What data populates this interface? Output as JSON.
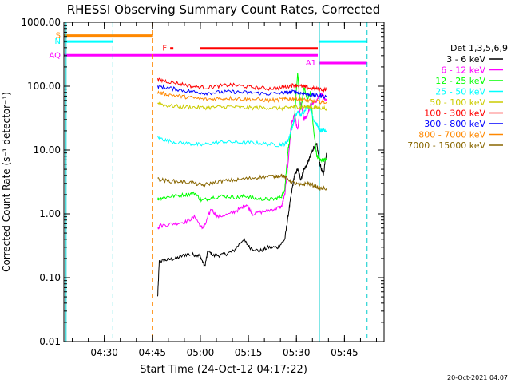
{
  "chart_data": {
    "type": "line",
    "title": "RHESSI Observing Summary Count Rates, Corrected",
    "xlabel": "Start Time (24-Oct-12 04:17:22)",
    "ylabel": "Corrected Count Rate (s⁻¹ detector⁻¹)",
    "footer": "20-Oct-2021 04:07",
    "x_unit": "minutes after 04:17:22",
    "xlim": [
      0,
      100
    ],
    "ylim": [
      0.01,
      1000
    ],
    "y_scale": "log",
    "x_ticks": [
      {
        "label": "04:30",
        "value": 12.63
      },
      {
        "label": "04:45",
        "value": 27.63
      },
      {
        "label": "05:00",
        "value": 42.63
      },
      {
        "label": "05:15",
        "value": 57.63
      },
      {
        "label": "05:30",
        "value": 72.63
      },
      {
        "label": "05:45",
        "value": 87.63
      }
    ],
    "y_ticks": [
      {
        "label": "1000.00",
        "value": 1000
      },
      {
        "label": "100.00",
        "value": 100
      },
      {
        "label": "10.00",
        "value": 10
      },
      {
        "label": "1.00",
        "value": 1
      },
      {
        "label": "0.10",
        "value": 0.1
      },
      {
        "label": "0.01",
        "value": 0.01
      }
    ],
    "legend_title": "Det 1,3,5,6,9",
    "legend_position": "right",
    "grid": false,
    "series": [
      {
        "name": "3 - 6 keV",
        "color": "#000000",
        "points": [
          [
            29.3,
            0.05
          ],
          [
            29.8,
            0.18
          ],
          [
            32,
            0.19
          ],
          [
            35,
            0.2
          ],
          [
            38,
            0.23
          ],
          [
            41,
            0.23
          ],
          [
            42.5,
            0.22
          ],
          [
            44,
            0.15
          ],
          [
            45,
            0.26
          ],
          [
            47,
            0.22
          ],
          [
            50,
            0.23
          ],
          [
            53,
            0.26
          ],
          [
            56,
            0.4
          ],
          [
            58,
            0.3
          ],
          [
            61,
            0.26
          ],
          [
            64,
            0.3
          ],
          [
            67,
            0.3
          ],
          [
            69,
            0.4
          ],
          [
            70,
            0.9
          ],
          [
            71,
            2
          ],
          [
            72,
            4
          ],
          [
            73,
            5
          ],
          [
            74,
            3.5
          ],
          [
            75,
            5
          ],
          [
            76,
            6
          ],
          [
            77,
            8
          ],
          [
            78,
            11
          ],
          [
            79,
            12
          ],
          [
            80,
            6
          ],
          [
            81,
            4
          ],
          [
            82,
            9
          ]
        ]
      },
      {
        "name": "6 - 12 keV",
        "color": "#ff00ff",
        "points": [
          [
            29.3,
            0.6
          ],
          [
            30,
            0.65
          ],
          [
            34,
            0.7
          ],
          [
            38,
            0.75
          ],
          [
            41,
            0.9
          ],
          [
            43,
            0.6
          ],
          [
            44,
            0.65
          ],
          [
            46,
            1.2
          ],
          [
            48,
            0.9
          ],
          [
            52,
            1.0
          ],
          [
            55,
            1.2
          ],
          [
            57,
            1.4
          ],
          [
            59,
            1.0
          ],
          [
            63,
            1.1
          ],
          [
            66,
            1.2
          ],
          [
            68,
            1.3
          ],
          [
            69,
            2
          ],
          [
            70,
            6
          ],
          [
            71,
            25
          ],
          [
            72,
            35
          ],
          [
            73,
            20
          ],
          [
            74,
            55
          ],
          [
            75,
            30
          ],
          [
            76,
            35
          ],
          [
            77,
            50
          ],
          [
            78,
            55
          ],
          [
            79,
            60
          ],
          [
            80,
            75
          ],
          [
            81,
            70
          ],
          [
            82,
            60
          ]
        ]
      },
      {
        "name": "12 - 25 keV",
        "color": "#00ff00",
        "points": [
          [
            29.3,
            1.7
          ],
          [
            31,
            1.8
          ],
          [
            34,
            1.9
          ],
          [
            38,
            2.0
          ],
          [
            41,
            2.1
          ],
          [
            43,
            1.6
          ],
          [
            46,
            1.8
          ],
          [
            50,
            1.9
          ],
          [
            54,
            1.8
          ],
          [
            57,
            1.9
          ],
          [
            60,
            1.7
          ],
          [
            63,
            1.7
          ],
          [
            66,
            1.7
          ],
          [
            68,
            1.9
          ],
          [
            69,
            2.5
          ],
          [
            70,
            10
          ],
          [
            71,
            20
          ],
          [
            72,
            30
          ],
          [
            73,
            160
          ],
          [
            74,
            40
          ],
          [
            75,
            100
          ],
          [
            76,
            60
          ],
          [
            77,
            80
          ],
          [
            78,
            20
          ],
          [
            79,
            8
          ],
          [
            80,
            7
          ],
          [
            81,
            7
          ],
          [
            82,
            7
          ]
        ]
      },
      {
        "name": "25 - 50 keV",
        "color": "#00ffff",
        "points": [
          [
            29.3,
            16
          ],
          [
            32,
            14
          ],
          [
            36,
            13
          ],
          [
            40,
            12.5
          ],
          [
            43,
            12
          ],
          [
            47,
            13
          ],
          [
            51,
            13.5
          ],
          [
            55,
            13
          ],
          [
            59,
            13
          ],
          [
            63,
            12.5
          ],
          [
            67,
            12
          ],
          [
            69,
            12.5
          ],
          [
            70,
            14
          ],
          [
            71,
            20
          ],
          [
            72,
            30
          ],
          [
            73,
            40
          ],
          [
            74,
            35
          ],
          [
            75,
            40
          ],
          [
            76,
            50
          ],
          [
            77,
            45
          ],
          [
            78,
            30
          ],
          [
            79,
            25
          ],
          [
            80,
            20
          ],
          [
            81,
            20
          ],
          [
            82,
            20
          ]
        ]
      },
      {
        "name": "50 - 100 keV",
        "color": "#cccc00",
        "points": [
          [
            29.3,
            55
          ],
          [
            32,
            50
          ],
          [
            36,
            48
          ],
          [
            40,
            47
          ],
          [
            44,
            46
          ],
          [
            48,
            47
          ],
          [
            52,
            48
          ],
          [
            56,
            46
          ],
          [
            60,
            46
          ],
          [
            64,
            46
          ],
          [
            68,
            45
          ],
          [
            70,
            46
          ],
          [
            72,
            48
          ],
          [
            74,
            47
          ],
          [
            76,
            48
          ],
          [
            78,
            46
          ],
          [
            80,
            46
          ],
          [
            82,
            45
          ]
        ]
      },
      {
        "name": "100 - 300 keV",
        "color": "#ff0000",
        "points": [
          [
            29.3,
            125
          ],
          [
            32,
            120
          ],
          [
            36,
            110
          ],
          [
            40,
            100
          ],
          [
            44,
            95
          ],
          [
            48,
            100
          ],
          [
            52,
            105
          ],
          [
            56,
            100
          ],
          [
            60,
            95
          ],
          [
            64,
            92
          ],
          [
            68,
            95
          ],
          [
            70,
            100
          ],
          [
            72,
            105
          ],
          [
            74,
            100
          ],
          [
            76,
            95
          ],
          [
            78,
            92
          ],
          [
            80,
            90
          ],
          [
            82,
            88
          ]
        ]
      },
      {
        "name": "300 - 800 keV",
        "color": "#0000ff",
        "points": [
          [
            29.3,
            100
          ],
          [
            32,
            95
          ],
          [
            36,
            88
          ],
          [
            40,
            82
          ],
          [
            44,
            78
          ],
          [
            48,
            80
          ],
          [
            52,
            82
          ],
          [
            56,
            80
          ],
          [
            60,
            78
          ],
          [
            64,
            76
          ],
          [
            68,
            78
          ],
          [
            70,
            80
          ],
          [
            72,
            82
          ],
          [
            74,
            78
          ],
          [
            76,
            75
          ],
          [
            78,
            72
          ],
          [
            80,
            70
          ],
          [
            82,
            68
          ]
        ]
      },
      {
        "name": "800 - 7000 keV",
        "color": "#ff8800",
        "points": [
          [
            29.3,
            80
          ],
          [
            32,
            75
          ],
          [
            36,
            70
          ],
          [
            40,
            66
          ],
          [
            44,
            62
          ],
          [
            48,
            64
          ],
          [
            52,
            65
          ],
          [
            56,
            63
          ],
          [
            60,
            62
          ],
          [
            64,
            60
          ],
          [
            68,
            62
          ],
          [
            70,
            63
          ],
          [
            72,
            64
          ],
          [
            74,
            62
          ],
          [
            76,
            60
          ],
          [
            78,
            58
          ],
          [
            80,
            57
          ],
          [
            82,
            56
          ]
        ]
      },
      {
        "name": "7000 - 15000 keV",
        "color": "#886600",
        "points": [
          [
            29.3,
            3.5
          ],
          [
            32,
            3.3
          ],
          [
            36,
            3.2
          ],
          [
            40,
            3.1
          ],
          [
            43,
            2.8
          ],
          [
            46,
            3.0
          ],
          [
            50,
            3.3
          ],
          [
            54,
            3.4
          ],
          [
            58,
            3.6
          ],
          [
            62,
            3.8
          ],
          [
            66,
            3.9
          ],
          [
            68,
            4.0
          ],
          [
            70,
            3.5
          ],
          [
            72,
            3.0
          ],
          [
            74,
            2.8
          ],
          [
            76,
            3.0
          ],
          [
            78,
            2.8
          ],
          [
            80,
            2.5
          ],
          [
            82,
            2.5
          ]
        ]
      }
    ],
    "vertical_lines": [
      {
        "x": 0.7,
        "color": "#00cccc",
        "style": "solid"
      },
      {
        "x": 15.3,
        "color": "#00cccc",
        "style": "dashed"
      },
      {
        "x": 27.6,
        "color": "#ff8800",
        "style": "dashed"
      },
      {
        "x": 79.8,
        "color": "#00cccc",
        "style": "solid"
      },
      {
        "x": 94.7,
        "color": "#00cccc",
        "style": "dashed"
      }
    ],
    "flag_bars": [
      {
        "label": "S",
        "color": "#ff8800",
        "x_start": 0,
        "x_end": 27.6,
        "y": 620
      },
      {
        "label": "N",
        "color": "#00ffff",
        "x_start": 0,
        "x_end": 15.3,
        "y": 500
      },
      {
        "label": "",
        "color": "#00ffff",
        "x_start": 79.8,
        "x_end": 94.7,
        "y": 500
      },
      {
        "label": "F",
        "color": "#ff0000",
        "x_start": 33.2,
        "x_end": 34.2,
        "y": 390
      },
      {
        "label": "",
        "color": "#ff0000",
        "x_start": 42.5,
        "x_end": 79.3,
        "y": 390
      },
      {
        "label": "AQ",
        "color": "#ff00ff",
        "x_start": 0,
        "x_end": 79.3,
        "y": 305
      },
      {
        "label": "A1",
        "color": "#ff00ff",
        "x_start": 79.8,
        "x_end": 94.7,
        "y": 230
      }
    ]
  }
}
